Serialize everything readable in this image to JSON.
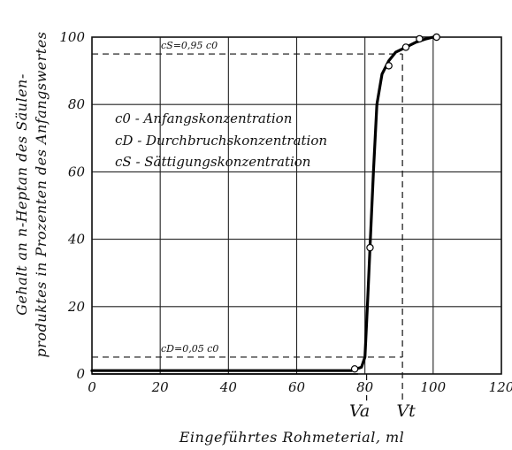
{
  "chart_data": {
    "type": "line",
    "title": "",
    "xlabel": "Eingeführtes Rohmeterial, ml",
    "ylabel_lines": [
      "Gehalt an n-Heptan des Säulen-",
      "produktes in Prozenten des Anfangswertes"
    ],
    "xlim": [
      0,
      120
    ],
    "ylim": [
      0,
      100
    ],
    "x_ticks": [
      0,
      20,
      40,
      60,
      80,
      100,
      120
    ],
    "y_ticks": [
      0,
      20,
      40,
      60,
      80,
      100
    ],
    "grid": true,
    "x_tick_labels": [
      "0",
      "20",
      "40",
      "60",
      "80",
      "100",
      "120"
    ],
    "y_tick_labels": [
      "0",
      "20",
      "40",
      "60",
      "80",
      "100"
    ],
    "series": [
      {
        "x": [
          0,
          20,
          40,
          60,
          76,
          79,
          80,
          80.8,
          81.5,
          82.5,
          83.5,
          85,
          87,
          89,
          92,
          95,
          98,
          100,
          101
        ],
        "y": [
          1,
          1,
          1,
          1,
          1,
          2,
          5,
          22,
          38,
          60,
          80,
          89,
          93,
          95.5,
          97,
          98.5,
          99.5,
          100,
          100
        ]
      }
    ],
    "points": {
      "x": [
        77,
        81.5,
        87,
        92,
        96,
        101
      ],
      "y": [
        1.5,
        37.5,
        91.5,
        97,
        99.5,
        100
      ]
    },
    "reference_lines": [
      {
        "y": 95,
        "label": "cS=0,95 c0"
      },
      {
        "y": 5,
        "label": "cD=0,05 c0"
      }
    ],
    "markers": [
      {
        "x": 80.5,
        "label": "Va"
      },
      {
        "x": 91,
        "label": "Vt"
      }
    ],
    "legend": [
      "c0 - Anfangskonzentration",
      "cD - Durchbruchskonzentration",
      "cS - Sättigungskonzentration"
    ],
    "legend_placement": "upper-left"
  }
}
